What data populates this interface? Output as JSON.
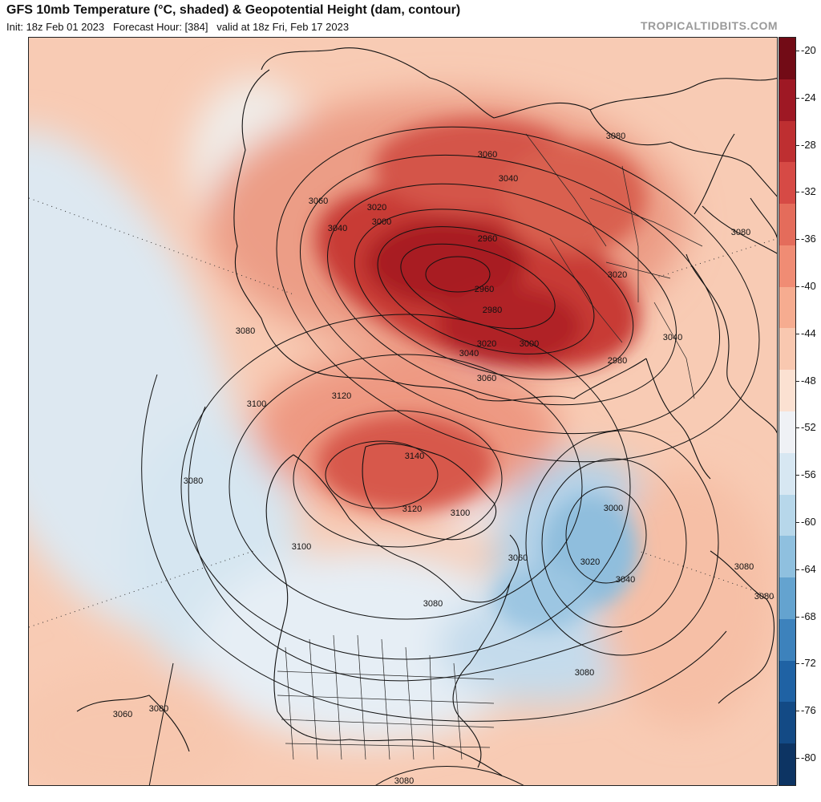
{
  "header": {
    "title": "GFS 10mb Temperature (°C, shaded) & Geopotential Height (dam, contour)",
    "subtitle": "Init: 18z Feb 01 2023   Forecast Hour: [384]   valid at 18z Fri, Feb 17 2023",
    "source": "TROPICALTIDBITS.COM"
  },
  "colorbar": {
    "ticks": [
      "-20",
      "-24",
      "-28",
      "-32",
      "-36",
      "-40",
      "-44",
      "-48",
      "-52",
      "-56",
      "-60",
      "-64",
      "-68",
      "-72",
      "-76",
      "-80"
    ],
    "colors": [
      "#720b16",
      "#9e1824",
      "#be2f31",
      "#d64a45",
      "#e46c5b",
      "#f08c74",
      "#f6ac90",
      "#f9c8b0",
      "#fbe1d2",
      "#eff1f5",
      "#d7e7f2",
      "#b7d7ea",
      "#8fc0df",
      "#64a3cf",
      "#3d82bc",
      "#1f62a4",
      "#134a85",
      "#0d3463"
    ]
  },
  "contour_labels": [
    {
      "text": "3080"
    },
    {
      "text": "3060"
    },
    {
      "text": "3040"
    },
    {
      "text": "3060"
    },
    {
      "text": "3040"
    },
    {
      "text": "3020"
    },
    {
      "text": "3000"
    },
    {
      "text": "2960"
    },
    {
      "text": "2960"
    },
    {
      "text": "2980"
    },
    {
      "text": "3080"
    },
    {
      "text": "3020"
    },
    {
      "text": "3080"
    },
    {
      "text": "3040"
    },
    {
      "text": "3020"
    },
    {
      "text": "3000"
    },
    {
      "text": "3040"
    },
    {
      "text": "3060"
    },
    {
      "text": "2980"
    },
    {
      "text": "3120"
    },
    {
      "text": "3100"
    },
    {
      "text": "3140"
    },
    {
      "text": "3080"
    },
    {
      "text": "3120"
    },
    {
      "text": "3100"
    },
    {
      "text": "3000"
    },
    {
      "text": "3100"
    },
    {
      "text": "3060"
    },
    {
      "text": "3020"
    },
    {
      "text": "3040"
    },
    {
      "text": "3080"
    },
    {
      "text": "3080"
    },
    {
      "text": "3080"
    },
    {
      "text": "3060"
    },
    {
      "text": "3080"
    },
    {
      "text": "3080"
    },
    {
      "text": "3080"
    }
  ]
}
